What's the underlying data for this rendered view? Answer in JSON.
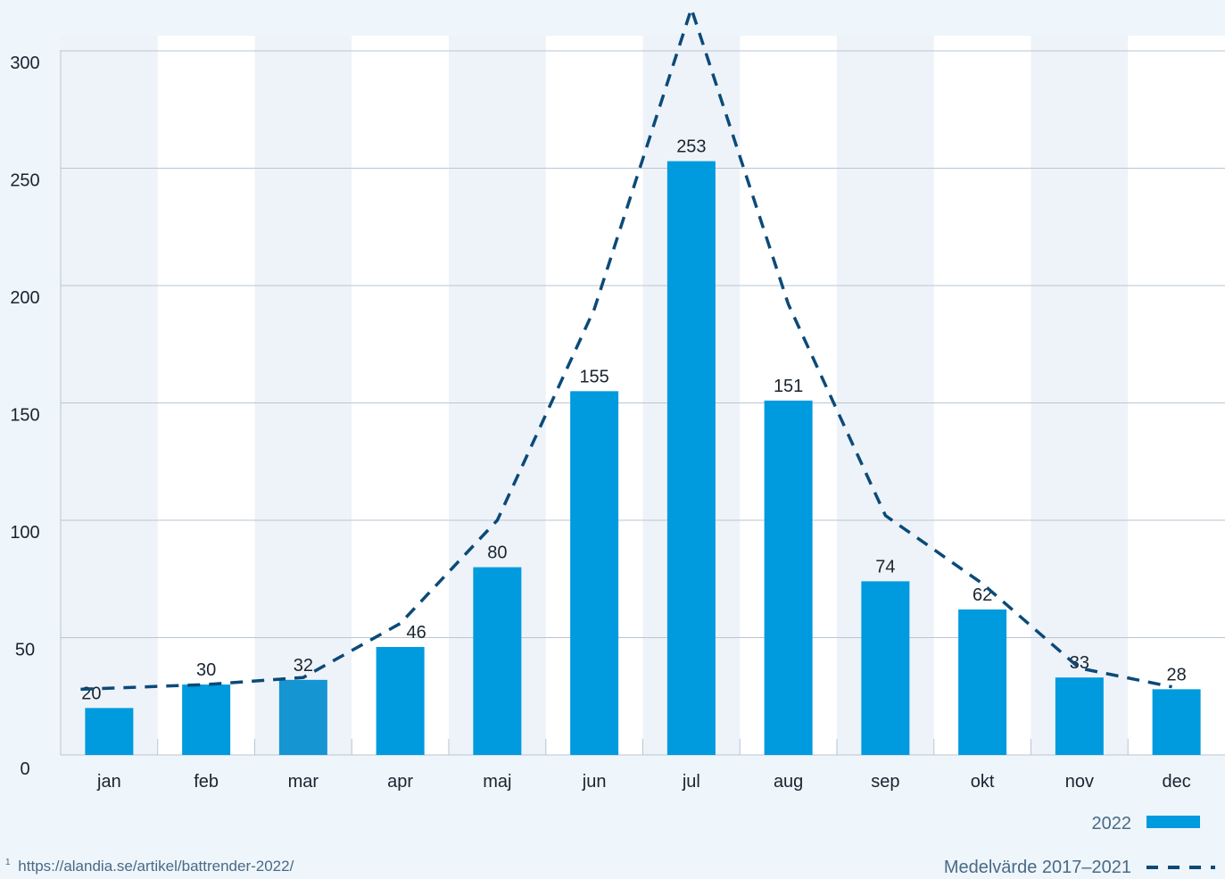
{
  "chart_data": {
    "type": "bar",
    "categories": [
      "jan",
      "feb",
      "mar",
      "apr",
      "maj",
      "jun",
      "jul",
      "aug",
      "sep",
      "okt",
      "nov",
      "dec"
    ],
    "series": [
      {
        "name": "2022",
        "type": "bar",
        "values": [
          20,
          30,
          32,
          46,
          80,
          155,
          253,
          151,
          74,
          62,
          33,
          28
        ],
        "color": "#009ade",
        "highlight_color": "#1596d2"
      },
      {
        "name": "Medelvärde 2017–2021",
        "type": "line",
        "style": "dashed",
        "values": [
          28,
          30,
          33,
          56,
          100,
          190,
          318,
          192,
          102,
          73,
          37,
          29
        ],
        "color": "#0b4a78"
      }
    ],
    "yticks": [
      0,
      50,
      100,
      150,
      200,
      250,
      300
    ],
    "ylim": [
      0,
      300
    ],
    "grid": true,
    "legend_position": "bottom-right",
    "title": "",
    "xlabel": "",
    "ylabel": ""
  },
  "footnote": {
    "marker": "1",
    "text": "https://alandia.se/artikel/battrender-2022/"
  },
  "colors": {
    "background": "#eef5fb",
    "plot_band_light": "#ffffff",
    "plot_band_dark": "#eef3f9",
    "grid": "#b9c6d2",
    "text": "#1a2430",
    "footnote": "#4a6a86"
  }
}
